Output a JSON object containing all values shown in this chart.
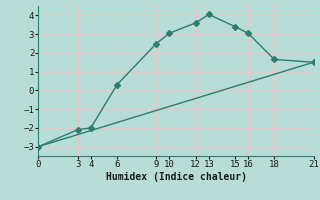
{
  "xlabel": "Humidex (Indice chaleur)",
  "line1_x": [
    0,
    3,
    4,
    6,
    9,
    10,
    12,
    13,
    15,
    16,
    18,
    21
  ],
  "line1_y": [
    -3,
    -2.1,
    -2.0,
    0.3,
    2.5,
    3.05,
    3.6,
    4.05,
    3.4,
    3.05,
    1.65,
    1.5
  ],
  "line2_x": [
    0,
    21
  ],
  "line2_y": [
    -3,
    1.5
  ],
  "line_color": "#2e7d6e",
  "bg_color": "#b8ddd6",
  "grid_color": "#e8c8c8",
  "xlim": [
    0,
    21
  ],
  "ylim": [
    -3.5,
    4.5
  ],
  "xticks": [
    0,
    3,
    4,
    6,
    9,
    10,
    12,
    13,
    15,
    16,
    18,
    21
  ],
  "yticks": [
    -3,
    -2,
    -1,
    0,
    1,
    2,
    3,
    4
  ],
  "markersize": 3.0,
  "linewidth": 1.0
}
